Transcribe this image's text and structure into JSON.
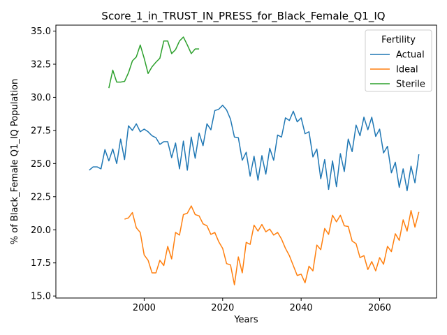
{
  "chart_data": {
    "type": "line",
    "title": "Score_1_in_TRUST_IN_PRESS_for_Black_Female_Q1_IQ",
    "xlabel": "Years",
    "ylabel": "% of Black_Female Q1_IQ Population",
    "xlim": [
      1977.5,
      2074.5
    ],
    "ylim": [
      14.85,
      35.45
    ],
    "xticks": [
      2000,
      2020,
      2040,
      2060
    ],
    "yticks": [
      15.0,
      17.5,
      20.0,
      22.5,
      25.0,
      27.5,
      30.0,
      32.5,
      35.0
    ],
    "xtick_labels": [
      "2000",
      "2020",
      "2040",
      "2060"
    ],
    "ytick_labels": [
      "15.0",
      "17.5",
      "20.0",
      "22.5",
      "25.0",
      "27.5",
      "30.0",
      "32.5",
      "35.0"
    ],
    "legend": {
      "title": "Fertility",
      "position": "top-right"
    },
    "series": [
      {
        "name": "Actual",
        "color": "#1f77b4",
        "x_start": 1986,
        "values": [
          24.5,
          24.75,
          24.75,
          24.6,
          26.05,
          25.2,
          26.1,
          25.0,
          26.85,
          25.3,
          27.85,
          27.5,
          28.0,
          27.4,
          27.6,
          27.4,
          27.1,
          26.95,
          26.45,
          26.65,
          26.65,
          25.45,
          26.55,
          24.6,
          26.7,
          24.5,
          27.0,
          25.4,
          27.3,
          26.35,
          28.0,
          27.55,
          29.0,
          29.1,
          29.4,
          29.05,
          28.35,
          27.0,
          26.95,
          25.25,
          25.85,
          24.05,
          25.55,
          23.75,
          25.6,
          24.2,
          26.15,
          25.25,
          27.15,
          27.0,
          28.45,
          28.25,
          28.95,
          28.15,
          28.45,
          27.25,
          27.4,
          25.5,
          26.1,
          23.85,
          25.3,
          23.05,
          25.2,
          23.25,
          25.75,
          24.4,
          26.85,
          25.9,
          27.9,
          27.1,
          28.5,
          27.55,
          28.5,
          27.05,
          27.6,
          25.8,
          26.3,
          24.3,
          25.1,
          23.2,
          24.6,
          22.95,
          24.8,
          23.55,
          25.7
        ]
      },
      {
        "name": "Ideal",
        "color": "#ff7f0e",
        "x_start": 1995,
        "values": [
          20.8,
          20.9,
          21.3,
          20.15,
          19.8,
          18.1,
          17.7,
          16.75,
          16.75,
          17.7,
          17.3,
          18.75,
          17.8,
          19.8,
          19.6,
          21.15,
          21.25,
          21.8,
          21.15,
          21.05,
          20.45,
          20.3,
          19.65,
          19.8,
          19.1,
          18.6,
          17.45,
          17.35,
          15.85,
          17.95,
          16.75,
          19.05,
          18.9,
          20.35,
          19.9,
          20.4,
          19.85,
          20.05,
          19.6,
          19.8,
          19.3,
          18.6,
          18.05,
          17.3,
          16.55,
          16.65,
          16.0,
          17.25,
          16.9,
          18.85,
          18.5,
          20.1,
          19.65,
          21.1,
          20.6,
          21.1,
          20.3,
          20.25,
          19.15,
          18.95,
          17.9,
          18.05,
          17.0,
          17.6,
          16.9,
          17.9,
          17.4,
          18.75,
          18.35,
          19.7,
          19.2,
          20.75,
          19.9,
          21.45,
          20.2,
          21.35
        ]
      },
      {
        "name": "Sterile",
        "color": "#2ca02c",
        "x_start": 1991,
        "values": [
          30.7,
          32.05,
          31.15,
          31.15,
          31.2,
          31.85,
          32.75,
          33.05,
          33.95,
          32.95,
          31.8,
          32.3,
          32.65,
          32.95,
          34.25,
          34.25,
          33.3,
          33.6,
          34.25,
          34.55,
          33.95,
          33.3,
          33.65,
          33.65
        ]
      }
    ]
  }
}
